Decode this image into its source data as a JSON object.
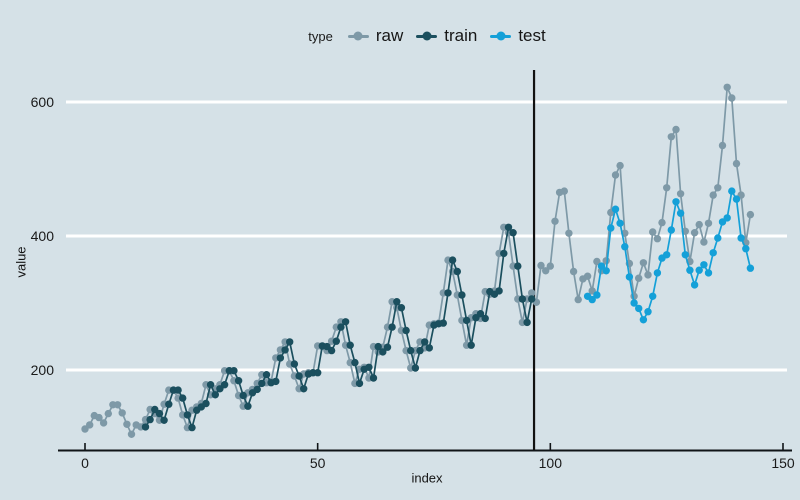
{
  "figure": {
    "background": "#d5e1e7",
    "legend": {
      "title": "type",
      "items": [
        {
          "label": "raw",
          "color": "#7e99a7"
        },
        {
          "label": "train",
          "color": "#1b4f5e"
        },
        {
          "label": "test",
          "color": "#14a0d8"
        }
      ]
    }
  },
  "chart_data": {
    "type": "line",
    "title": "",
    "xlabel": "index",
    "ylabel": "value",
    "xticks": [
      0,
      50,
      100,
      150
    ],
    "yticks": [
      200,
      400,
      600
    ],
    "xlim": [
      -5,
      153
    ],
    "ylim": [
      80,
      650
    ],
    "grid": "horizontal-white-major",
    "legend_position": "top-center",
    "split_vline_x": 96.5,
    "colors": {
      "grid": "#ffffff",
      "axis": "#101417",
      "vline": "#111111",
      "text": "#1a1a1a"
    },
    "series": [
      {
        "name": "raw",
        "color": "#7e99a7",
        "start_index": 0,
        "values": [
          112,
          118,
          132,
          129,
          121,
          135,
          148,
          148,
          136,
          119,
          104,
          118,
          115,
          126,
          141,
          135,
          125,
          149,
          170,
          170,
          158,
          133,
          114,
          140,
          145,
          150,
          178,
          163,
          172,
          178,
          199,
          199,
          184,
          162,
          146,
          166,
          171,
          180,
          193,
          181,
          183,
          218,
          230,
          242,
          209,
          191,
          172,
          194,
          196,
          196,
          236,
          235,
          229,
          243,
          264,
          272,
          237,
          211,
          180,
          201,
          204,
          188,
          235,
          227,
          234,
          264,
          302,
          293,
          259,
          229,
          203,
          229,
          242,
          233,
          267,
          269,
          270,
          315,
          364,
          347,
          312,
          274,
          237,
          278,
          284,
          277,
          317,
          313,
          318,
          374,
          413,
          405,
          355,
          306,
          271,
          306,
          315,
          301,
          356,
          348,
          355,
          422,
          465,
          467,
          404,
          347,
          305,
          336,
          340,
          318,
          362,
          348,
          363,
          435,
          491,
          505,
          404,
          359,
          310,
          337,
          360,
          342,
          406,
          396,
          420,
          472,
          548,
          559,
          463,
          407,
          362,
          405,
          417,
          391,
          419,
          461,
          472,
          535,
          622,
          606,
          508,
          461,
          390,
          432
        ]
      },
      {
        "name": "train",
        "color": "#1b4f5e",
        "start_index": 13,
        "values": [
          115,
          126,
          141,
          135,
          125,
          149,
          170,
          170,
          158,
          133,
          114,
          140,
          145,
          150,
          178,
          163,
          172,
          178,
          199,
          199,
          184,
          162,
          146,
          166,
          171,
          180,
          193,
          181,
          183,
          218,
          230,
          242,
          209,
          191,
          172,
          194,
          196,
          196,
          236,
          235,
          229,
          243,
          264,
          272,
          237,
          211,
          180,
          201,
          204,
          188,
          235,
          227,
          234,
          264,
          302,
          293,
          259,
          229,
          203,
          229,
          242,
          233,
          267,
          269,
          270,
          315,
          364,
          347,
          312,
          274,
          237,
          278,
          284,
          277,
          317,
          313,
          318,
          374,
          413,
          405,
          355,
          306,
          271,
          306
        ]
      },
      {
        "name": "test",
        "color": "#14a0d8",
        "start_index": 108,
        "values": [
          310,
          305,
          312,
          355,
          348,
          412,
          440,
          419,
          384,
          339,
          300,
          292,
          275,
          287,
          310,
          345,
          367,
          372,
          409,
          451,
          434,
          372,
          349,
          327,
          349,
          357,
          345,
          375,
          397,
          421,
          427,
          467,
          455,
          397,
          381,
          352
        ]
      }
    ]
  }
}
